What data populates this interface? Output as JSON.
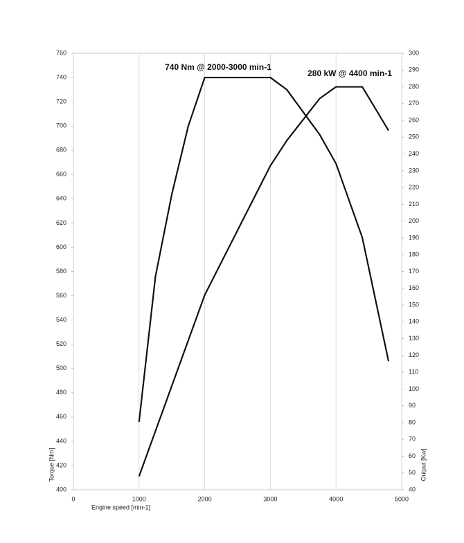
{
  "chart_data": {
    "type": "line",
    "x_label": "Engine speed [min-1]",
    "y_label": "Torque [Nm]",
    "y2_label": "Output [Kw]",
    "annotations": [
      "740 Nm @ 2000-3000 min-1",
      "280 kW @ 4400 min-1"
    ],
    "series": [
      {
        "color": "#111111",
        "x": [
          1000,
          1250,
          1500,
          1750,
          2000,
          3000,
          3250,
          3750,
          4000,
          4400,
          4800
        ],
        "values": [
          456,
          576,
          644,
          700,
          740,
          740,
          730,
          693,
          669,
          608,
          506
        ]
      },
      {
        "color": "#111111",
        "axis": "y2",
        "x": [
          1000,
          2000,
          3000,
          3250,
          3750,
          4000,
          4400,
          4800
        ],
        "values": [
          48,
          156,
          233,
          248,
          273,
          280,
          280,
          254
        ]
      }
    ],
    "xlim": [
      0,
      5000
    ],
    "xticks": [
      0,
      1000,
      2000,
      3000,
      4000,
      5000
    ],
    "ylim": [
      400,
      760
    ],
    "yticks": [
      400,
      420,
      440,
      460,
      480,
      500,
      520,
      540,
      560,
      580,
      600,
      620,
      640,
      660,
      680,
      700,
      720,
      740,
      760
    ],
    "y2lim": [
      40,
      300
    ],
    "y2ticks": [
      40,
      50,
      60,
      70,
      80,
      90,
      100,
      110,
      120,
      130,
      140,
      150,
      160,
      170,
      180,
      190,
      200,
      210,
      220,
      230,
      240,
      250,
      260,
      270,
      280,
      290,
      300
    ],
    "grid": true
  }
}
